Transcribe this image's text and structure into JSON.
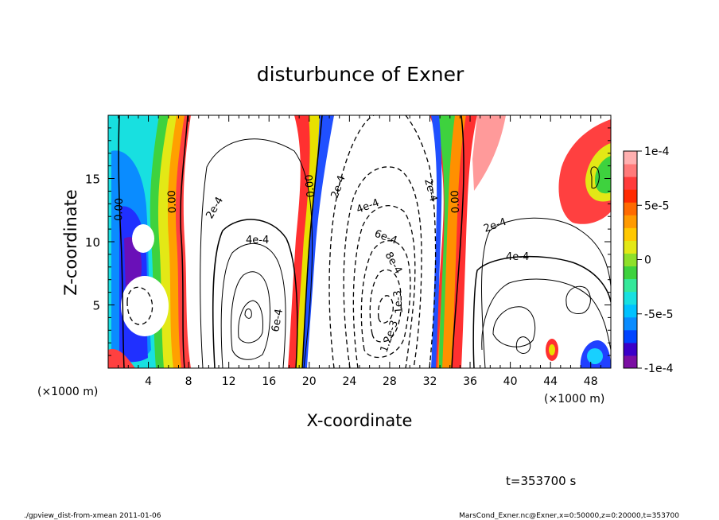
{
  "chart_data": {
    "type": "heatmap",
    "title": "disturbunce of Exner",
    "xlabel": "X-coordinate",
    "ylabel": "Z-coordinate",
    "x_unit": "(×1000 m)",
    "z_unit": "(×1000 m)",
    "xlim": [
      0,
      50
    ],
    "ylim": [
      0,
      20
    ],
    "x_ticks": [
      "4",
      "8",
      "12",
      "16",
      "20",
      "24",
      "28",
      "32",
      "36",
      "40",
      "44",
      "48"
    ],
    "x_tick_values": [
      4,
      8,
      12,
      16,
      20,
      24,
      28,
      32,
      36,
      40,
      44,
      48
    ],
    "y_ticks": [
      "5",
      "10",
      "15"
    ],
    "y_tick_values": [
      5,
      10,
      15
    ],
    "colorbar": {
      "min": -0.0001,
      "max": 0.0001,
      "tick_labels": [
        "1e-4",
        "5e-5",
        "0",
        "-5e-5",
        "-1e-4"
      ],
      "tick_values": [
        0.0001,
        5e-05,
        0,
        -5e-05,
        -0.0001
      ],
      "colors": [
        "#7b0fa3",
        "#3b00c8",
        "#0044ff",
        "#0a8cff",
        "#00c2ff",
        "#18e0e0",
        "#35e89a",
        "#3ed23e",
        "#8ee02a",
        "#e3e816",
        "#ffc800",
        "#ff9a00",
        "#ff6a00",
        "#ff2a00",
        "#ff3b3b",
        "#ff7a7a",
        "#ffb0b0"
      ]
    },
    "contour_labels": [
      "0.00",
      "0.00",
      "0.00",
      "0.00",
      "2e-4",
      "4e-4",
      "6e-4",
      "2e-4",
      "4e-4",
      "6e-4",
      "8e-4",
      "1e-3",
      "1.2e-3",
      "2e-4",
      "4e-4",
      "2e-4"
    ],
    "time_label": "t=353700 s",
    "footer_left": "./gpview_dist-from-xmean   2011-01-06",
    "footer_right": "MarsCond_Exner.nc@Exner,x=0:50000,z=0:20000,t=353700"
  }
}
